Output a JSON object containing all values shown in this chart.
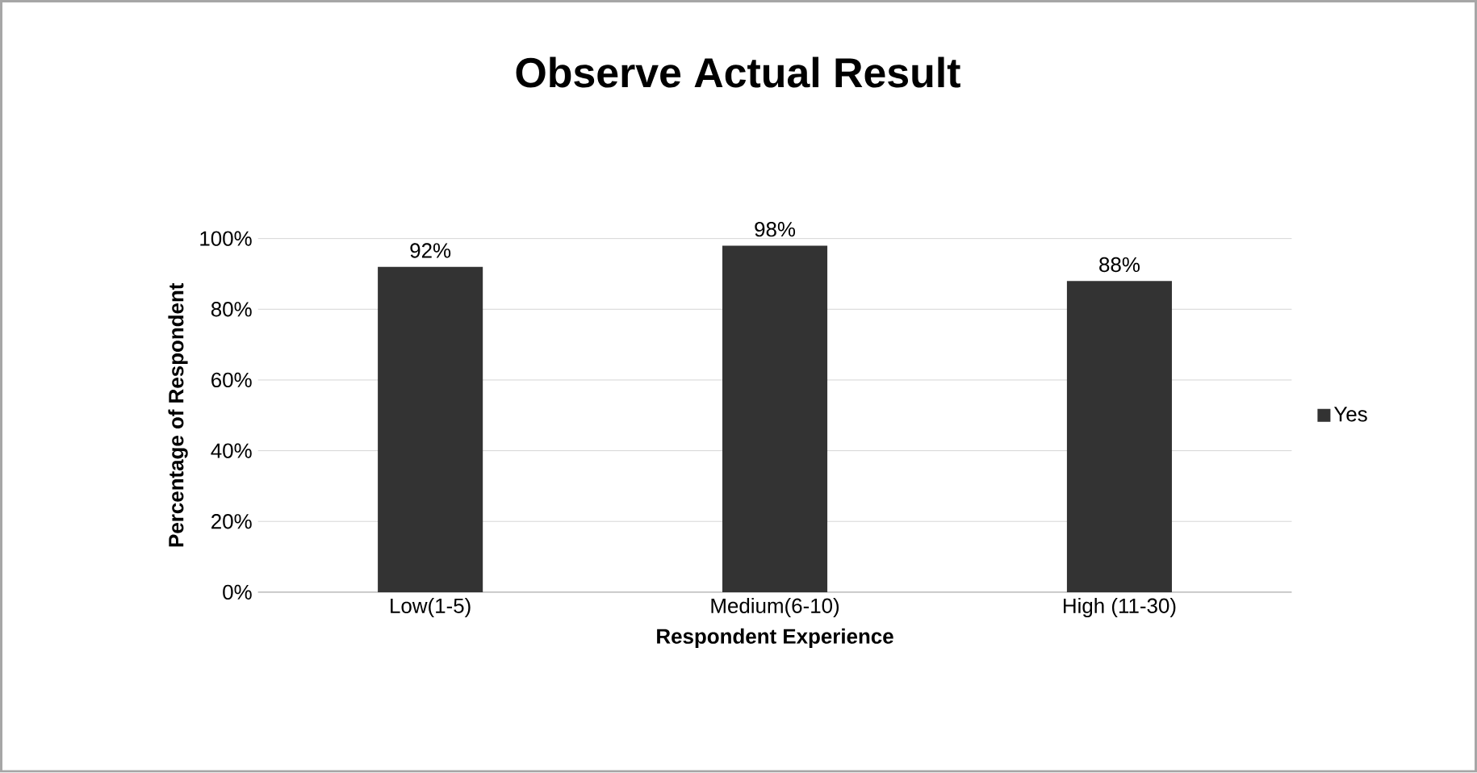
{
  "chart_data": {
    "type": "bar",
    "title": "Observe Actual Result",
    "xlabel": "Respondent Experience",
    "ylabel": "Percentage of Respondent",
    "categories": [
      "Low(1-5)",
      "Medium(6-10)",
      "High (11-30)"
    ],
    "series": [
      {
        "name": "Yes",
        "color": "#333333",
        "values": [
          92,
          98,
          88
        ],
        "value_labels": [
          "92%",
          "98%",
          "88%"
        ]
      }
    ],
    "ylim": [
      0,
      100
    ],
    "yticks": [
      {
        "value": 0,
        "label": "0%"
      },
      {
        "value": 20,
        "label": "20%"
      },
      {
        "value": 40,
        "label": "40%"
      },
      {
        "value": 60,
        "label": "60%"
      },
      {
        "value": 80,
        "label": "80%"
      },
      {
        "value": 100,
        "label": "100%"
      }
    ],
    "grid": "y",
    "legend": "right"
  }
}
